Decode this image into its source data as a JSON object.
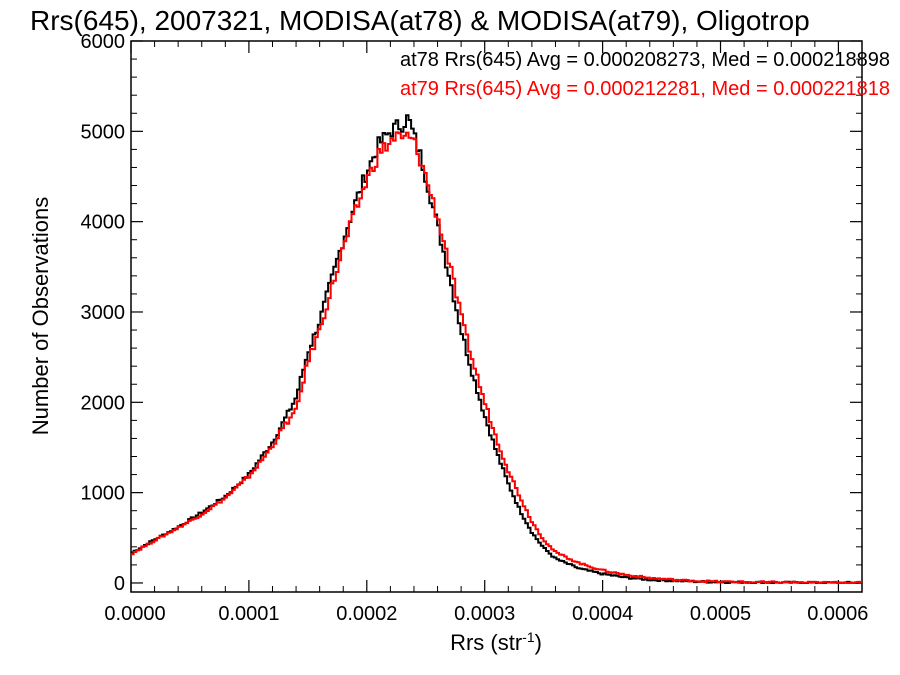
{
  "chart_data": {
    "type": "step",
    "title": "Rrs(645), 2007321, MODISA(at78) & MODISA(at79), Oligotrop",
    "xlabel": "Rrs (str",
    "xlabel_superscript": "-1",
    "xlabel_suffix": ")",
    "ylabel": "Number of Observations",
    "xlim": [
      0.0,
      0.00062
    ],
    "ylim": [
      -100,
      6000
    ],
    "xticks": [
      "0.0000",
      "0.0001",
      "0.0002",
      "0.0003",
      "0.0004",
      "0.0005",
      "0.0006"
    ],
    "xtick_values": [
      0.0,
      0.0001,
      0.0002,
      0.0003,
      0.0004,
      0.0005,
      0.0006
    ],
    "yticks": [
      "0",
      "1000",
      "2000",
      "3000",
      "4000",
      "5000",
      "6000"
    ],
    "ytick_values": [
      0,
      1000,
      2000,
      3000,
      4000,
      5000,
      6000
    ],
    "annotations": [
      {
        "text": "at78 Rrs(645) Avg = 0.000208273, Med = 0.000218898",
        "color": "#000000"
      },
      {
        "text": "at79 Rrs(645) Avg = 0.000212281, Med = 0.000221818",
        "color": "#ff0000"
      }
    ],
    "series": [
      {
        "color": "#000000",
        "x": [
          0.0,
          2e-05,
          4e-05,
          6e-05,
          8e-05,
          0.0001,
          0.00011,
          0.00012,
          0.00013,
          0.00014,
          0.00015,
          0.00016,
          0.00017,
          0.00018,
          0.00019,
          0.0002,
          0.00021,
          0.00022,
          0.000225,
          0.00023,
          0.000235,
          0.00024,
          0.000245,
          0.00025,
          0.00026,
          0.00027,
          0.00028,
          0.00029,
          0.0003,
          0.00031,
          0.00032,
          0.00033,
          0.00034,
          0.00035,
          0.00036,
          0.00038,
          0.0004,
          0.00042,
          0.00044,
          0.00046,
          0.00048,
          0.0005,
          0.00052,
          0.00055,
          0.00058,
          0.00062
        ],
        "values": [
          330,
          480,
          620,
          780,
          960,
          1200,
          1380,
          1560,
          1800,
          2050,
          2550,
          2900,
          3350,
          3800,
          4200,
          4550,
          4850,
          5000,
          5050,
          5080,
          5150,
          4950,
          4750,
          4500,
          3950,
          3400,
          2800,
          2300,
          1850,
          1450,
          1100,
          800,
          560,
          390,
          270,
          160,
          100,
          60,
          35,
          25,
          15,
          10,
          8,
          5,
          3,
          2
        ]
      },
      {
        "color": "#ff0000",
        "x": [
          0.0,
          2e-05,
          4e-05,
          6e-05,
          8e-05,
          0.0001,
          0.00011,
          0.00012,
          0.00013,
          0.00014,
          0.00015,
          0.00016,
          0.00017,
          0.00018,
          0.00019,
          0.0002,
          0.00021,
          0.00022,
          0.000225,
          0.00023,
          0.000235,
          0.00024,
          0.000245,
          0.00025,
          0.00026,
          0.00027,
          0.00028,
          0.00029,
          0.0003,
          0.00031,
          0.00032,
          0.00033,
          0.00034,
          0.00035,
          0.00036,
          0.00038,
          0.0004,
          0.00042,
          0.00044,
          0.00046,
          0.00048,
          0.0005,
          0.00052,
          0.00055,
          0.00058,
          0.00062
        ],
        "values": [
          320,
          470,
          610,
          760,
          940,
          1180,
          1340,
          1520,
          1740,
          1900,
          2450,
          2800,
          3250,
          3700,
          4100,
          4450,
          4750,
          4880,
          4950,
          4900,
          4950,
          4880,
          4700,
          4500,
          4050,
          3550,
          2950,
          2450,
          2000,
          1600,
          1250,
          950,
          680,
          480,
          340,
          220,
          140,
          90,
          55,
          35,
          22,
          15,
          10,
          7,
          4,
          2
        ]
      }
    ]
  }
}
